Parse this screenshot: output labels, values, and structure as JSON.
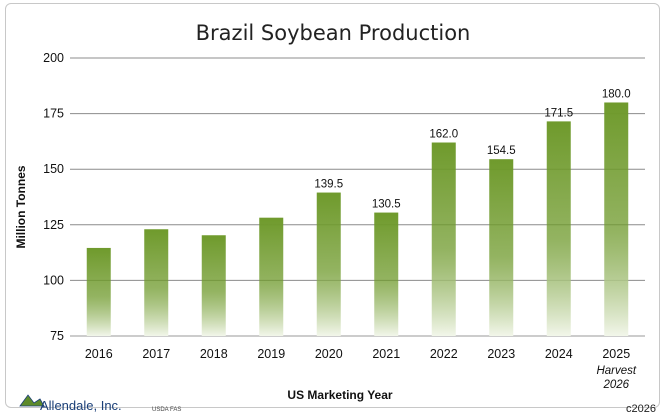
{
  "chart_data": {
    "type": "bar",
    "title": "Brazil Soybean Production",
    "xlabel": "US Marketing Year",
    "ylabel": "Million Tonnes",
    "ylim": [
      75,
      200
    ],
    "yticks": [
      75,
      100,
      125,
      150,
      175,
      200
    ],
    "grid": true,
    "categories": [
      "2016",
      "2017",
      "2018",
      "2019",
      "2020",
      "2021",
      "2022",
      "2023",
      "2024",
      "2025"
    ],
    "category_sublabels": [
      "",
      "",
      "",
      "",
      "",
      "",
      "",
      "",
      "",
      "Harvest\n2026"
    ],
    "values": [
      114.6,
      123.0,
      120.3,
      128.2,
      139.5,
      130.5,
      162.0,
      154.5,
      171.5,
      180.0
    ],
    "data_labels": [
      "",
      "",
      "",
      "",
      "139.5",
      "130.5",
      "162.0",
      "154.5",
      "171.5",
      "180.0"
    ],
    "bar_color": "#6f9a2c",
    "bar_fade_color": "#f2f6ea"
  },
  "branding": {
    "logo": "Allendale, Inc.",
    "source": "USDA FAS",
    "copyright": "c2026"
  }
}
